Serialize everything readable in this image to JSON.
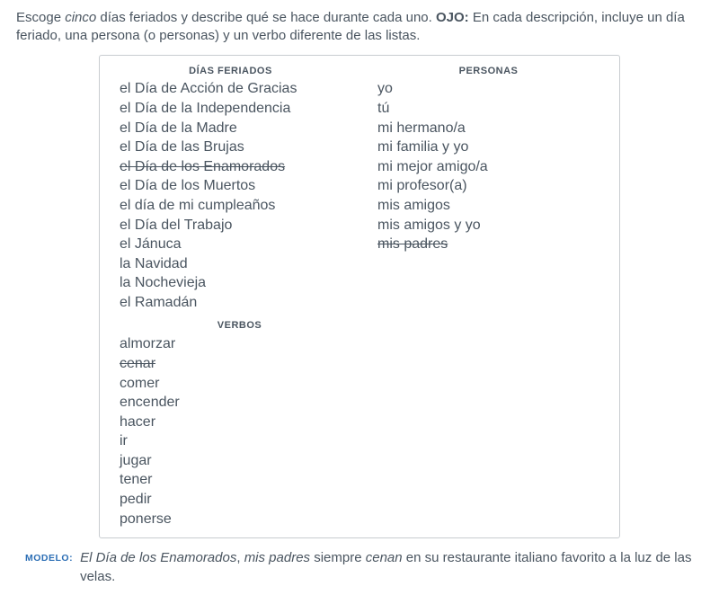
{
  "instructions": {
    "part1": "Escoge ",
    "emph": "cinco",
    "part2": " días feriados y describe qué se hace durante cada uno. ",
    "ojo_label": "OJO:",
    "part3": " En cada descripción, incluye un día feriado, una persona (o personas) y un verbo diferente de las listas."
  },
  "headings": {
    "dias": "DÍAS FERIADOS",
    "personas": "PERSONAS",
    "verbos": "VERBOS"
  },
  "dias": [
    {
      "text": "el Día de Acción de Gracias",
      "struck": false
    },
    {
      "text": "el Día de la Independencia",
      "struck": false
    },
    {
      "text": "el Día de la Madre",
      "struck": false
    },
    {
      "text": "el Día de las Brujas",
      "struck": false
    },
    {
      "text": "el Día de los Enamorados",
      "struck": true
    },
    {
      "text": "el Día de los Muertos",
      "struck": false
    },
    {
      "text": "el día de mi cumpleaños",
      "struck": false
    },
    {
      "text": "el Día del Trabajo",
      "struck": false
    },
    {
      "text": "el Jánuca",
      "struck": false
    },
    {
      "text": "la Navidad",
      "struck": false
    },
    {
      "text": "la Nochevieja",
      "struck": false
    },
    {
      "text": "el Ramadán",
      "struck": false
    }
  ],
  "personas": [
    {
      "text": "yo",
      "struck": false
    },
    {
      "text": "tú",
      "struck": false
    },
    {
      "text": "mi hermano/a",
      "struck": false
    },
    {
      "text": "mi familia y yo",
      "struck": false
    },
    {
      "text": "mi mejor amigo/a",
      "struck": false
    },
    {
      "text": "mi profesor(a)",
      "struck": false
    },
    {
      "text": "mis amigos",
      "struck": false
    },
    {
      "text": "mis amigos y yo",
      "struck": false
    },
    {
      "text": "mis padres",
      "struck": true
    }
  ],
  "verbos": [
    {
      "text": "almorzar",
      "struck": false
    },
    {
      "text": "cenar",
      "struck": true
    },
    {
      "text": "comer",
      "struck": false
    },
    {
      "text": "encender",
      "struck": false
    },
    {
      "text": "hacer",
      "struck": false
    },
    {
      "text": "ir",
      "struck": false
    },
    {
      "text": "jugar",
      "struck": false
    },
    {
      "text": "tener",
      "struck": false
    },
    {
      "text": "pedir",
      "struck": false
    },
    {
      "text": "ponerse",
      "struck": false
    }
  ],
  "modelo": {
    "label": "MODELO:",
    "i1": "El Día de los Enamorados",
    "p1": ", ",
    "i2": "mis padres",
    "p2": " siempre ",
    "i3": "cenan",
    "p3": " en su restaurante italiano favorito a la luz de las velas."
  }
}
